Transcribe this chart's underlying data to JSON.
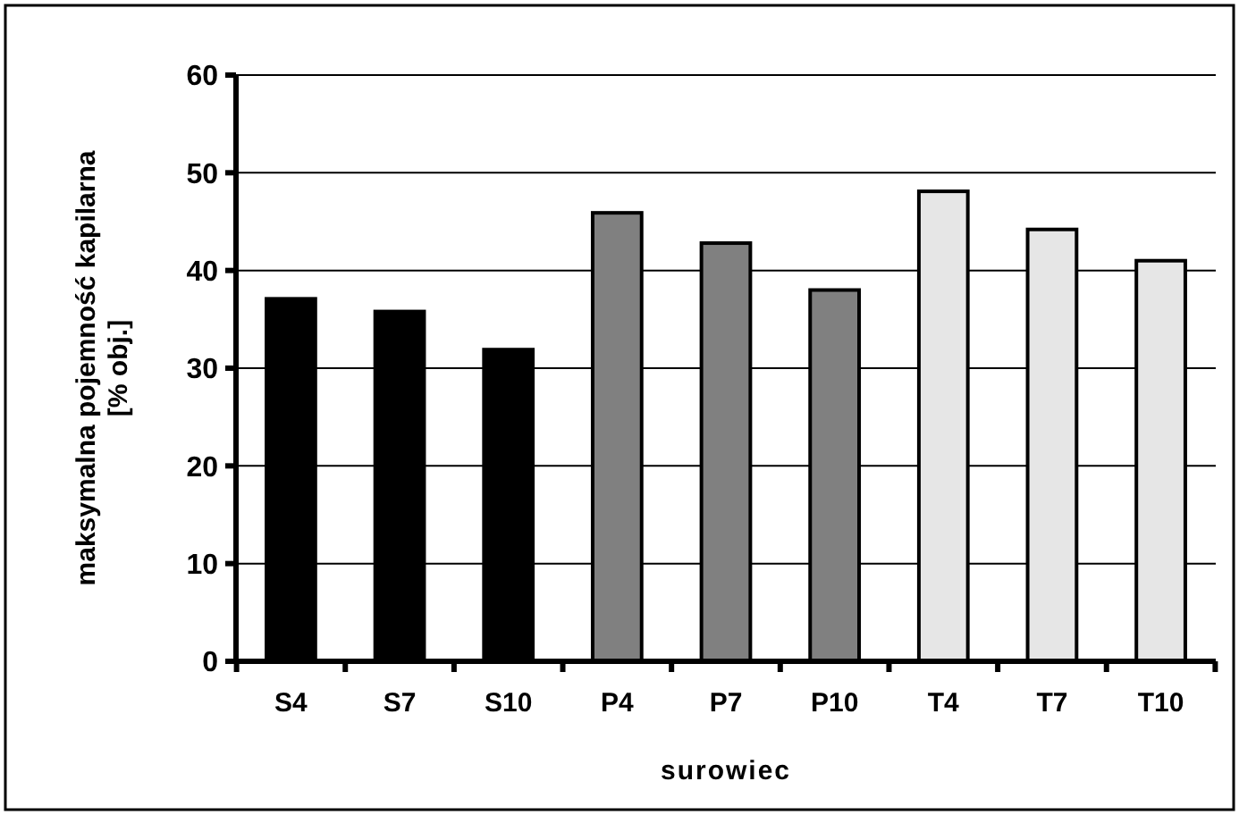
{
  "chart_data": {
    "type": "bar",
    "xlabel": "surowiec",
    "ylabel": "maksymalna pojemność kapilarna\n[% obj.]",
    "categories": [
      "S4",
      "S7",
      "S10",
      "P4",
      "P7",
      "P10",
      "T4",
      "T7",
      "T10"
    ],
    "values": [
      37.1,
      35.8,
      31.9,
      45.9,
      42.8,
      38.0,
      48.1,
      44.2,
      41.0
    ],
    "colors": [
      "#000000",
      "#000000",
      "#000000",
      "#808080",
      "#808080",
      "#808080",
      "#e6e6e6",
      "#e6e6e6",
      "#e6e6e6"
    ],
    "ylim": [
      0,
      60
    ],
    "yticks": [
      0,
      10,
      20,
      30,
      40,
      50,
      60
    ],
    "grid": "y"
  }
}
